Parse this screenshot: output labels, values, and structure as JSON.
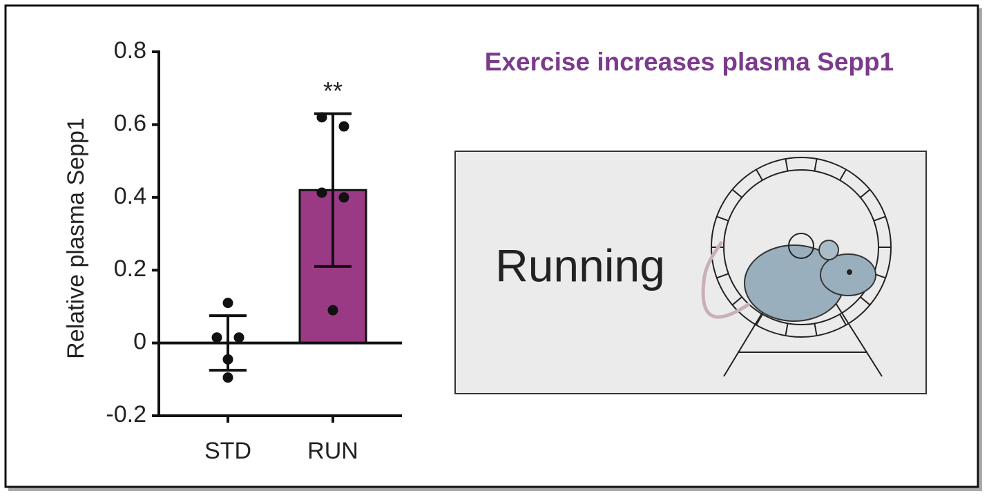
{
  "chart_data": {
    "type": "bar",
    "title": "Exercise increases plasma Sepp1",
    "ylabel": "Relative plasma Sepp1",
    "categories": [
      "STD",
      "RUN"
    ],
    "values": [
      0,
      0.42
    ],
    "errors": [
      0.075,
      0.21
    ],
    "points": [
      [
        0.11,
        0.015,
        0.015,
        -0.045,
        -0.095
      ],
      [
        0.62,
        0.595,
        0.413,
        0.4,
        0.09
      ]
    ],
    "color": "#9b3a84",
    "annotation": "**",
    "ylim": [
      -0.2,
      0.8
    ],
    "yticks": [
      0.8,
      0.6,
      0.4,
      0.2,
      0,
      -0.2
    ]
  },
  "illustration": {
    "label": "Running"
  }
}
